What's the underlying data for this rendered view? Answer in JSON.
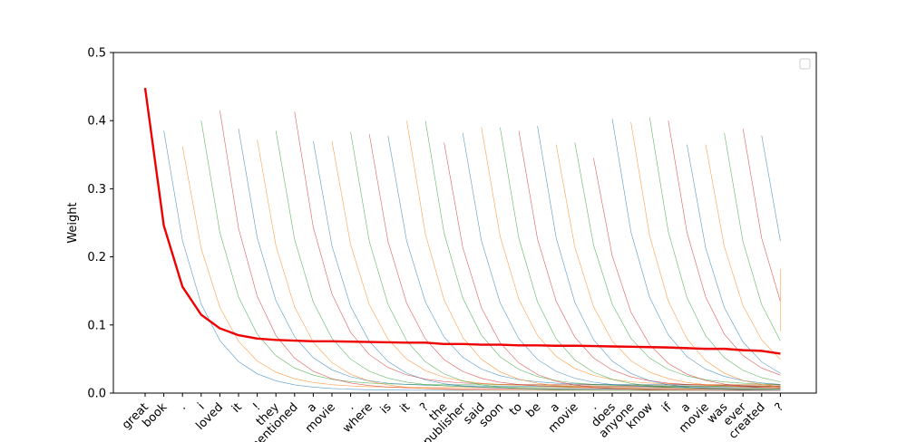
{
  "chart_data": {
    "type": "line",
    "title": "",
    "xlabel": "",
    "ylabel": "Weight",
    "ylim": [
      0,
      0.5
    ],
    "yticks": [
      "0.0",
      "0.1",
      "0.2",
      "0.3",
      "0.4",
      "0.5"
    ],
    "categories": [
      "great",
      "book",
      ".",
      "i",
      "loved",
      "it",
      "!",
      "they",
      "mentioned",
      "a",
      "movie",
      ".",
      "where",
      "is",
      "it",
      "?",
      "the",
      "publisher",
      "said",
      "soon",
      "to",
      "be",
      "a",
      "movie",
      ".",
      "does",
      "anyone",
      "know",
      "if",
      "a",
      "movie",
      "was",
      "ever",
      "created",
      "?"
    ],
    "grid": false,
    "legend": "top-right (empty)",
    "series": [
      {
        "style": "bold-red",
        "color": "#ee0000",
        "values": [
          0.448,
          0.246,
          0.156,
          0.115,
          0.095,
          0.085,
          0.08,
          0.078,
          0.077,
          0.076,
          0.076,
          0.0755,
          0.075,
          0.0745,
          0.074,
          0.074,
          0.072,
          0.072,
          0.071,
          0.071,
          0.07,
          0.07,
          0.0695,
          0.0695,
          0.069,
          0.0685,
          0.068,
          0.0675,
          0.067,
          0.066,
          0.065,
          0.065,
          0.063,
          0.062,
          0.058
        ]
      }
    ],
    "thin_series": {
      "style": "thin faint decaying lines, one starting at each token",
      "color_cycle": [
        "#1f77b4",
        "#ff7f0e",
        "#2ca02c",
        "#d62728"
      ],
      "peaks": [
        0.385,
        0.362,
        0.4,
        0.415,
        0.388,
        0.372,
        0.385,
        0.413,
        0.37,
        0.37,
        0.383,
        0.38,
        0.378,
        0.4,
        0.4,
        0.368,
        0.382,
        0.39,
        0.39,
        0.385,
        0.392,
        0.365,
        0.368,
        0.345,
        0.403,
        0.398,
        0.405,
        0.4,
        0.365,
        0.365,
        0.382,
        0.388,
        0.378,
        0.182
      ]
    }
  }
}
